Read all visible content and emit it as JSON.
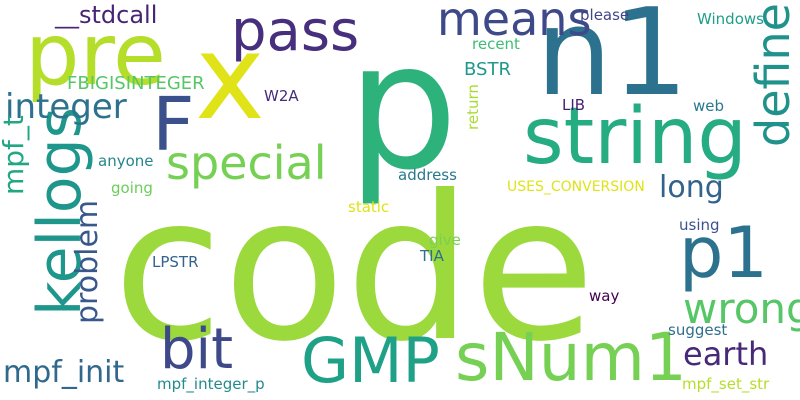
{
  "words": [
    {
      "key": "code",
      "text": "code",
      "color": "#9bd93c"
    },
    {
      "key": "p",
      "text": "p",
      "color": "#2eb27c"
    },
    {
      "key": "n1",
      "text": "n1",
      "color": "#2c728e"
    },
    {
      "key": "x",
      "text": "x",
      "color": "#dfe318"
    },
    {
      "key": "pre",
      "text": "pre",
      "color": "#b5de2b"
    },
    {
      "key": "F",
      "text": "F",
      "color": "#3b518b"
    },
    {
      "key": "string",
      "text": "string",
      "color": "#25ac82"
    },
    {
      "key": "pass",
      "text": "pass",
      "color": "#472f7d"
    },
    {
      "key": "means",
      "text": "means",
      "color": "#3e4989"
    },
    {
      "key": "GMP",
      "text": "GMP",
      "color": "#1fa187"
    },
    {
      "key": "sNum1",
      "text": "sNum1",
      "color": "#75d054"
    },
    {
      "key": "p1",
      "text": "p1",
      "color": "#2c728e"
    },
    {
      "key": "bit",
      "text": "bit",
      "color": "#3e4989"
    },
    {
      "key": "kellogs",
      "text": "kellogs",
      "color": "#1f968b"
    },
    {
      "key": "special",
      "text": "special",
      "color": "#75d054"
    },
    {
      "key": "define",
      "text": "define",
      "color": "#20928c"
    },
    {
      "key": "integer",
      "text": "integer",
      "color": "#2c728e"
    },
    {
      "key": "mpf_t",
      "text": "mpf_t",
      "color": "#22a785"
    },
    {
      "key": "problem",
      "text": "problem",
      "color": "#38588c"
    },
    {
      "key": "stdcall",
      "text": "__stdcall",
      "color": "#482475"
    },
    {
      "key": "wrong",
      "text": "wrong",
      "color": "#56c667"
    },
    {
      "key": "earth",
      "text": "earth",
      "color": "#482878"
    },
    {
      "key": "mpf_init",
      "text": "mpf_init",
      "color": "#31688e"
    },
    {
      "key": "long",
      "text": "long",
      "color": "#33638d"
    },
    {
      "key": "FBIGISINTEGER",
      "text": "FBIGISINTEGER",
      "color": "#56c667"
    },
    {
      "key": "BSTR",
      "text": "BSTR",
      "color": "#1f988b"
    },
    {
      "key": "please",
      "text": "please",
      "color": "#404688"
    },
    {
      "key": "Windows",
      "text": "Windows",
      "color": "#1f9e89"
    },
    {
      "key": "recent",
      "text": "recent",
      "color": "#3dbc74"
    },
    {
      "key": "W2A",
      "text": "W2A",
      "color": "#472c7a"
    },
    {
      "key": "return",
      "text": "return",
      "color": "#a8db34"
    },
    {
      "key": "LIB",
      "text": "LIB",
      "color": "#481f70"
    },
    {
      "key": "web",
      "text": "web",
      "color": "#2a788e"
    },
    {
      "key": "anyone",
      "text": "anyone",
      "color": "#25858e"
    },
    {
      "key": "address",
      "text": "address",
      "color": "#2a788e"
    },
    {
      "key": "going",
      "text": "going",
      "color": "#6ccd5a"
    },
    {
      "key": "USES_CONVERSION",
      "text": "USES_CONVERSION",
      "color": "#dfe318"
    },
    {
      "key": "static",
      "text": "static",
      "color": "#dfe318"
    },
    {
      "key": "using",
      "text": "using",
      "color": "#3b528b"
    },
    {
      "key": "give",
      "text": "give",
      "color": "#7ad151"
    },
    {
      "key": "LPSTR",
      "text": "LPSTR",
      "color": "#33638d"
    },
    {
      "key": "TIA",
      "text": "TIA",
      "color": "#2d708e"
    },
    {
      "key": "way",
      "text": "way",
      "color": "#440154"
    },
    {
      "key": "suggest",
      "text": "suggest",
      "color": "#2e6e8e"
    },
    {
      "key": "mpf_integer_p",
      "text": "mpf_integer_p",
      "color": "#238a8d"
    },
    {
      "key": "mpf_set_str",
      "text": "mpf_set_str",
      "color": "#b5de2b"
    }
  ]
}
